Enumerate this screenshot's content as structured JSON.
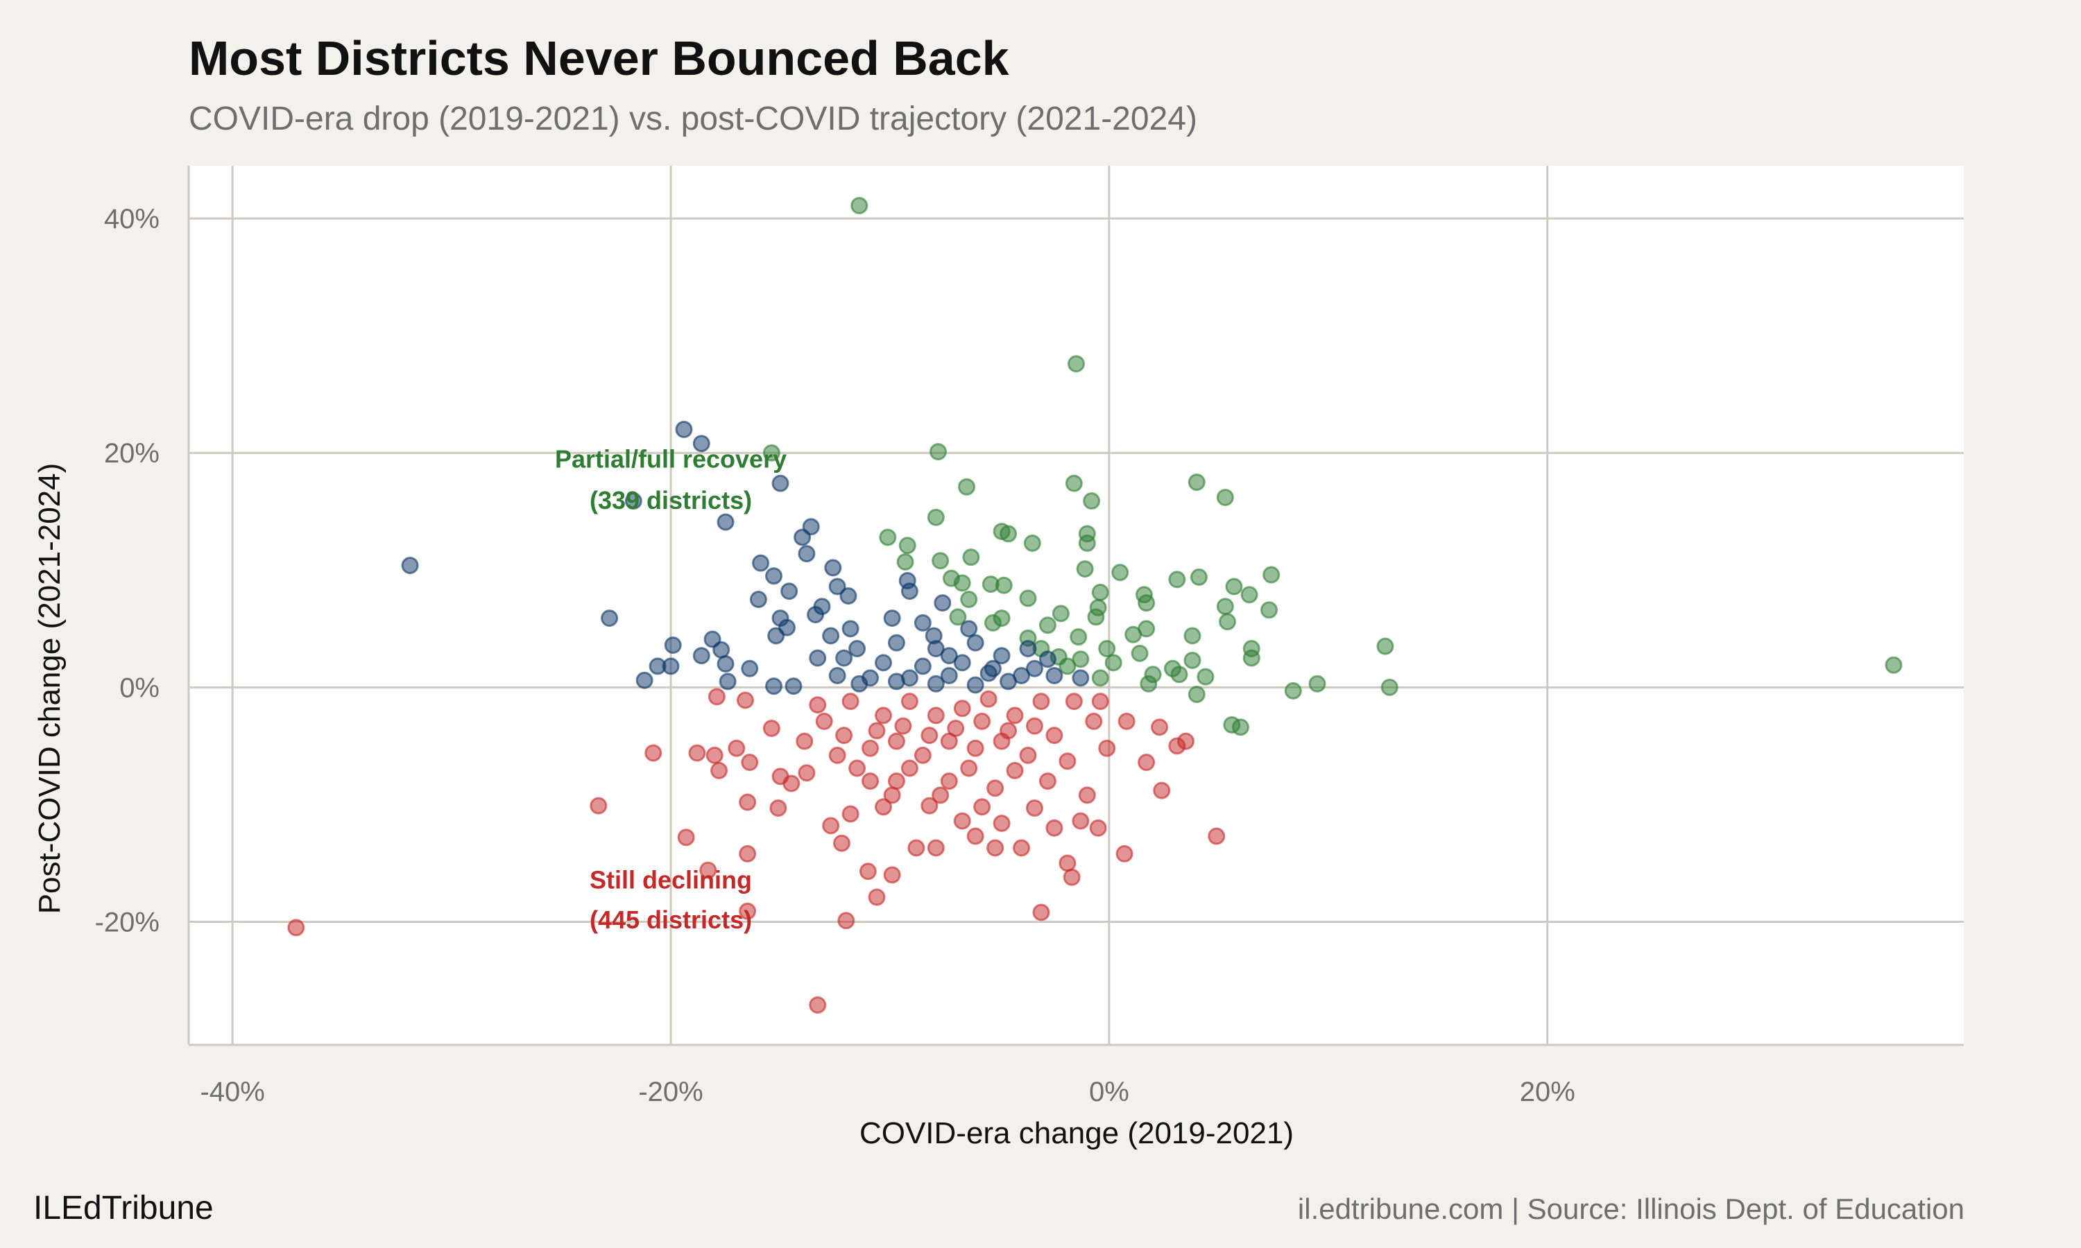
{
  "title": "Most Districts Never Bounced Back",
  "subtitle": "COVID-era drop (2019-2021) vs. post-COVID trajectory (2021-2024)",
  "footer": {
    "brand": "ILEdTribune",
    "source": "il.edtribune.com | Source: Illinois Dept. of Education"
  },
  "chart_data": {
    "type": "scatter",
    "xlabel": "COVID-era change (2019-2021)",
    "ylabel": "Post-COVID change (2021-2024)",
    "xlim": [
      -42,
      39
    ],
    "ylim": [
      -30.5,
      44.5
    ],
    "x_ticks": [
      -40,
      -20,
      0,
      20
    ],
    "x_tick_labels": [
      "-40%",
      "-20%",
      "0%",
      "20%"
    ],
    "y_ticks": [
      -20,
      0,
      20,
      40
    ],
    "y_tick_labels": [
      "-20%",
      "0%",
      "20%",
      "40%"
    ],
    "grid": true,
    "colors": {
      "recovered": "#2e7d32",
      "partial": "#0b3566",
      "declining": "#c62828",
      "grid": "#cfc9bf",
      "panel": "#ffffff"
    },
    "annotations": [
      {
        "lines": [
          "Partial/full recovery",
          "(339 districts)"
        ],
        "color": "#2e7d32",
        "x": -20,
        "y": [
          19.5,
          16.0
        ]
      },
      {
        "lines": [
          "Still declining",
          "(445 districts)"
        ],
        "color": "#c62828",
        "x": -20,
        "y": [
          -16.4,
          -19.8
        ]
      }
    ],
    "series": [
      {
        "key": "recovered",
        "points": [
          [
            -11.4,
            41.1
          ],
          [
            -1.5,
            27.6
          ],
          [
            -7.8,
            20.1
          ],
          [
            -15.4,
            20.0
          ],
          [
            4.0,
            17.5
          ],
          [
            -1.6,
            17.4
          ],
          [
            -6.5,
            17.1
          ],
          [
            5.3,
            16.2
          ],
          [
            -0.8,
            15.9
          ],
          [
            -7.9,
            14.5
          ],
          [
            -4.9,
            13.3
          ],
          [
            -4.6,
            13.1
          ],
          [
            -3.5,
            12.3
          ],
          [
            -10.1,
            12.8
          ],
          [
            -9.2,
            12.1
          ],
          [
            -1.0,
            13.1
          ],
          [
            -1.0,
            12.3
          ],
          [
            -6.3,
            11.1
          ],
          [
            -9.3,
            10.7
          ],
          [
            -7.7,
            10.8
          ],
          [
            -1.1,
            10.1
          ],
          [
            0.5,
            9.8
          ],
          [
            7.4,
            9.6
          ],
          [
            4.1,
            9.4
          ],
          [
            3.1,
            9.2
          ],
          [
            -7.2,
            9.3
          ],
          [
            -6.7,
            8.9
          ],
          [
            -4.8,
            8.7
          ],
          [
            -5.4,
            8.8
          ],
          [
            5.7,
            8.6
          ],
          [
            -0.4,
            8.1
          ],
          [
            6.4,
            7.9
          ],
          [
            1.6,
            7.9
          ],
          [
            1.7,
            7.2
          ],
          [
            -6.4,
            7.5
          ],
          [
            -3.7,
            7.6
          ],
          [
            5.3,
            6.9
          ],
          [
            -0.5,
            6.8
          ],
          [
            7.3,
            6.6
          ],
          [
            -2.2,
            6.3
          ],
          [
            -4.9,
            5.9
          ],
          [
            -0.6,
            6.0
          ],
          [
            5.4,
            5.6
          ],
          [
            -6.9,
            6.0
          ],
          [
            -5.3,
            5.5
          ],
          [
            -2.8,
            5.3
          ],
          [
            1.7,
            5.0
          ],
          [
            1.1,
            4.5
          ],
          [
            3.8,
            4.4
          ],
          [
            -3.7,
            4.2
          ],
          [
            -1.4,
            4.3
          ],
          [
            12.6,
            3.5
          ],
          [
            6.5,
            3.3
          ],
          [
            -0.1,
            3.3
          ],
          [
            1.4,
            2.9
          ],
          [
            3.8,
            2.3
          ],
          [
            2.9,
            1.6
          ],
          [
            6.5,
            2.5
          ],
          [
            35.8,
            1.9
          ],
          [
            4.4,
            0.9
          ],
          [
            1.8,
            0.3
          ],
          [
            9.5,
            0.3
          ],
          [
            12.8,
            0.0
          ],
          [
            8.4,
            -0.3
          ],
          [
            4.0,
            -0.6
          ],
          [
            5.6,
            -3.2
          ],
          [
            6.0,
            -3.4
          ],
          [
            -2.3,
            2.6
          ],
          [
            -1.3,
            2.4
          ],
          [
            0.2,
            2.1
          ],
          [
            2.0,
            1.1
          ],
          [
            3.2,
            1.1
          ],
          [
            -1.9,
            1.8
          ],
          [
            -0.4,
            0.8
          ],
          [
            -3.1,
            3.3
          ]
        ]
      },
      {
        "key": "partial",
        "points": [
          [
            -19.4,
            22.0
          ],
          [
            -18.6,
            20.8
          ],
          [
            -15.0,
            17.4
          ],
          [
            -21.7,
            15.9
          ],
          [
            -17.5,
            14.1
          ],
          [
            -31.9,
            10.4
          ],
          [
            -13.6,
            13.7
          ],
          [
            -14.0,
            12.8
          ],
          [
            -13.8,
            11.4
          ],
          [
            -15.9,
            10.6
          ],
          [
            -12.6,
            10.2
          ],
          [
            -15.3,
            9.5
          ],
          [
            -14.6,
            8.2
          ],
          [
            -12.4,
            8.6
          ],
          [
            -11.9,
            7.8
          ],
          [
            -16.0,
            7.5
          ],
          [
            -13.1,
            6.9
          ],
          [
            -9.2,
            9.1
          ],
          [
            -9.1,
            8.2
          ],
          [
            -7.6,
            7.2
          ],
          [
            -13.4,
            6.2
          ],
          [
            -15.0,
            5.9
          ],
          [
            -14.7,
            5.1
          ],
          [
            -22.8,
            5.9
          ],
          [
            -19.9,
            3.6
          ],
          [
            -18.1,
            4.1
          ],
          [
            -17.7,
            3.2
          ],
          [
            -18.6,
            2.7
          ],
          [
            -15.2,
            4.4
          ],
          [
            -12.7,
            4.4
          ],
          [
            -11.8,
            5.0
          ],
          [
            -9.9,
            5.9
          ],
          [
            -8.5,
            5.5
          ],
          [
            -20.0,
            1.8
          ],
          [
            -20.6,
            1.8
          ],
          [
            -17.5,
            2.0
          ],
          [
            -16.4,
            1.6
          ],
          [
            -17.4,
            0.5
          ],
          [
            -21.2,
            0.6
          ],
          [
            -15.3,
            0.1
          ],
          [
            -14.4,
            0.1
          ],
          [
            -13.3,
            2.5
          ],
          [
            -11.5,
            3.3
          ],
          [
            -9.7,
            3.8
          ],
          [
            -7.9,
            3.3
          ],
          [
            -6.1,
            3.8
          ],
          [
            -10.3,
            2.1
          ],
          [
            -8.5,
            1.8
          ],
          [
            -6.7,
            2.1
          ],
          [
            -4.9,
            2.7
          ],
          [
            -3.7,
            3.3
          ],
          [
            -2.8,
            2.4
          ],
          [
            -10.9,
            0.8
          ],
          [
            -9.1,
            0.8
          ],
          [
            -7.3,
            1.0
          ],
          [
            -5.5,
            1.2
          ],
          [
            -4.0,
            1.0
          ],
          [
            -2.5,
            1.0
          ],
          [
            -1.3,
            0.8
          ],
          [
            -12.4,
            1.0
          ],
          [
            -12.1,
            2.5
          ],
          [
            -7.3,
            2.7
          ],
          [
            -6.4,
            5.0
          ],
          [
            -5.3,
            1.6
          ],
          [
            -3.4,
            1.6
          ],
          [
            -8.0,
            4.4
          ],
          [
            -4.6,
            0.5
          ],
          [
            -9.7,
            0.5
          ],
          [
            -7.9,
            0.3
          ],
          [
            -6.1,
            0.2
          ],
          [
            -11.4,
            0.3
          ]
        ]
      },
      {
        "key": "declining",
        "points": [
          [
            -37.1,
            -20.5
          ],
          [
            -23.3,
            -10.1
          ],
          [
            -20.8,
            -5.6
          ],
          [
            -19.3,
            -12.8
          ],
          [
            -18.3,
            -15.6
          ],
          [
            -16.5,
            -19.1
          ],
          [
            -16.5,
            -14.2
          ],
          [
            -16.5,
            -9.8
          ],
          [
            -13.3,
            -27.1
          ],
          [
            -12.0,
            -19.9
          ],
          [
            -10.6,
            -17.9
          ],
          [
            -9.9,
            -16.0
          ],
          [
            -11.0,
            -15.7
          ],
          [
            -1.7,
            -16.2
          ],
          [
            -3.1,
            -19.2
          ],
          [
            0.7,
            -14.2
          ],
          [
            4.9,
            -12.7
          ],
          [
            2.4,
            -8.8
          ],
          [
            1.7,
            -6.4
          ],
          [
            3.5,
            -4.6
          ],
          [
            3.1,
            -5.0
          ],
          [
            2.3,
            -3.4
          ],
          [
            -18.0,
            -5.8
          ],
          [
            -17.8,
            -7.1
          ],
          [
            -18.8,
            -5.6
          ],
          [
            -17.0,
            -5.2
          ],
          [
            -16.4,
            -6.4
          ],
          [
            -17.9,
            -0.8
          ],
          [
            -16.6,
            -1.1
          ],
          [
            -15.4,
            -3.5
          ],
          [
            -15.0,
            -7.6
          ],
          [
            -15.1,
            -10.3
          ],
          [
            -14.5,
            -8.2
          ],
          [
            -13.8,
            -7.3
          ],
          [
            -13.3,
            -1.5
          ],
          [
            -12.7,
            -11.8
          ],
          [
            -12.2,
            -13.3
          ],
          [
            -11.8,
            -10.8
          ],
          [
            -10.9,
            -8.0
          ],
          [
            -9.9,
            -9.2
          ],
          [
            -9.1,
            -6.9
          ],
          [
            -8.2,
            -10.1
          ],
          [
            -7.3,
            -8.0
          ],
          [
            -7.9,
            -13.7
          ],
          [
            -6.1,
            -12.7
          ],
          [
            -4.9,
            -11.6
          ],
          [
            -4.0,
            -13.7
          ],
          [
            -3.4,
            -10.3
          ],
          [
            -2.5,
            -12.0
          ],
          [
            -1.3,
            -11.4
          ],
          [
            -0.5,
            -12.0
          ],
          [
            -1.0,
            -9.2
          ],
          [
            -1.9,
            -6.3
          ],
          [
            -0.1,
            -5.2
          ],
          [
            0.8,
            -2.9
          ],
          [
            -0.7,
            -2.9
          ],
          [
            -2.5,
            -4.1
          ],
          [
            -3.7,
            -5.8
          ],
          [
            -4.9,
            -4.6
          ],
          [
            -6.1,
            -5.2
          ],
          [
            -7.3,
            -4.6
          ],
          [
            -8.5,
            -5.8
          ],
          [
            -9.7,
            -4.6
          ],
          [
            -10.9,
            -5.2
          ],
          [
            -12.1,
            -4.1
          ],
          [
            -10.3,
            -2.4
          ],
          [
            -9.1,
            -1.2
          ],
          [
            -7.9,
            -2.4
          ],
          [
            -6.7,
            -1.8
          ],
          [
            -5.5,
            -1.0
          ],
          [
            -4.3,
            -2.4
          ],
          [
            -3.1,
            -1.2
          ],
          [
            -1.6,
            -1.2
          ],
          [
            -0.4,
            -1.2
          ],
          [
            -7.0,
            -3.5
          ],
          [
            -5.8,
            -2.9
          ],
          [
            -4.6,
            -3.7
          ],
          [
            -3.4,
            -3.3
          ],
          [
            -8.2,
            -4.1
          ],
          [
            -9.4,
            -3.3
          ],
          [
            -10.6,
            -3.7
          ],
          [
            -11.8,
            -1.2
          ],
          [
            -13.0,
            -2.9
          ],
          [
            -13.9,
            -4.6
          ],
          [
            -6.4,
            -6.9
          ],
          [
            -5.2,
            -8.6
          ],
          [
            -4.3,
            -7.1
          ],
          [
            -2.8,
            -8.0
          ],
          [
            -7.7,
            -9.2
          ],
          [
            -9.7,
            -8.0
          ],
          [
            -11.5,
            -6.9
          ],
          [
            -12.4,
            -5.8
          ],
          [
            -5.8,
            -10.2
          ],
          [
            -6.7,
            -11.4
          ],
          [
            -10.3,
            -10.2
          ],
          [
            -5.2,
            -13.7
          ],
          [
            -8.8,
            -13.7
          ],
          [
            -1.9,
            -15.0
          ]
        ]
      }
    ]
  }
}
